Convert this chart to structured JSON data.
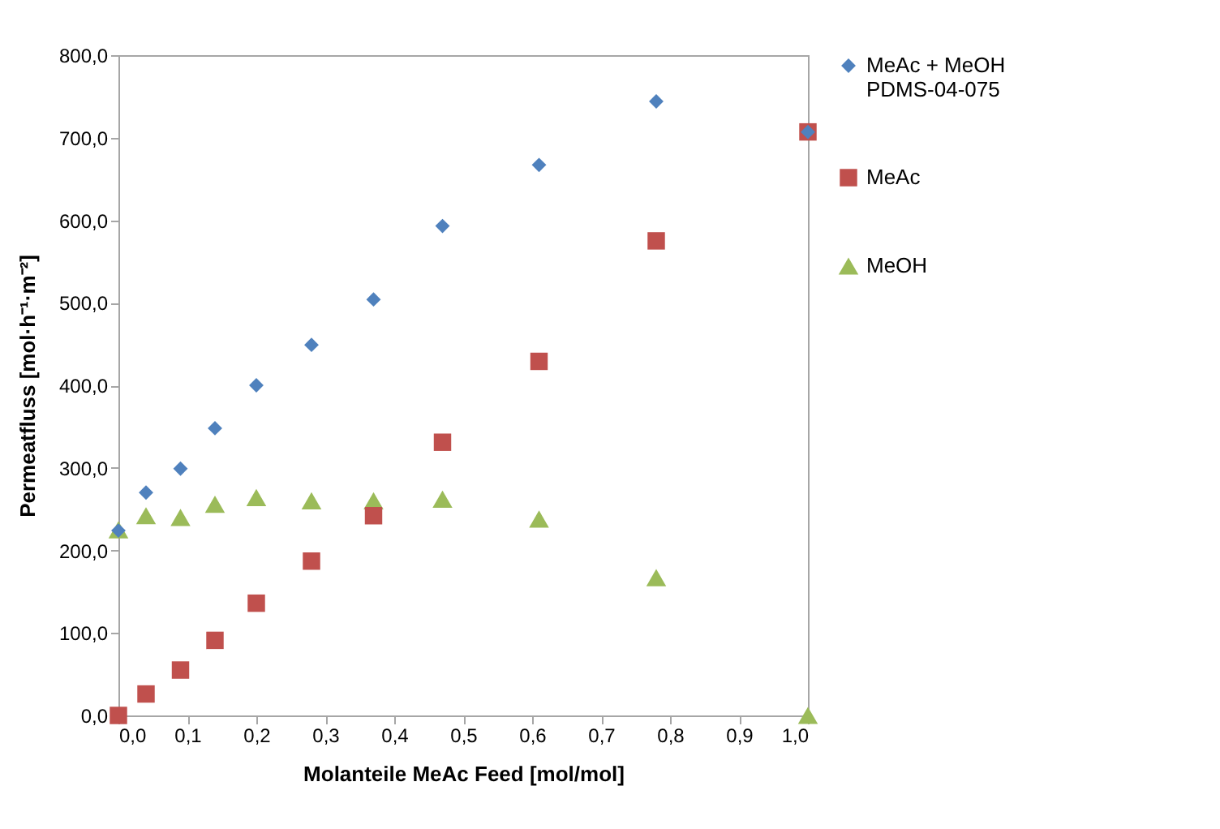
{
  "chart_data": {
    "type": "scatter",
    "xlabel": "Molanteile MeAc Feed [mol/mol]",
    "ylabel": "Permeatfluss [mol·h⁻¹·m⁻²]",
    "x": [
      0.0,
      0.04,
      0.09,
      0.14,
      0.2,
      0.28,
      0.37,
      0.47,
      0.61,
      0.78,
      1.0
    ],
    "series": [
      {
        "name": "MeAc + MeOH PDMS-04-075",
        "color": "#4f81bd",
        "marker": "diamond",
        "values": [
          224,
          270,
          299,
          348,
          400,
          449,
          504,
          593,
          667,
          744,
          707
        ]
      },
      {
        "name": "MeAc",
        "color": "#c0504d",
        "marker": "square",
        "values": [
          0,
          26,
          55,
          91,
          136,
          187,
          242,
          331,
          429,
          575,
          707
        ]
      },
      {
        "name": "MeOH",
        "color": "#9bbb59",
        "marker": "triangle",
        "values": [
          225,
          242,
          240,
          256,
          264,
          260,
          260,
          262,
          238,
          167,
          0
        ]
      }
    ],
    "xlim": [
      0,
      1.0
    ],
    "xticks": [
      {
        "value": 0,
        "label": "0,0"
      },
      {
        "value": 0.1,
        "label": "0,1"
      },
      {
        "value": 0.2,
        "label": "0,2"
      },
      {
        "value": 0.3,
        "label": "0,3"
      },
      {
        "value": 0.4,
        "label": "0,4"
      },
      {
        "value": 0.5,
        "label": "0,5"
      },
      {
        "value": 0.6,
        "label": "0,6"
      },
      {
        "value": 0.7,
        "label": "0,7"
      },
      {
        "value": 0.8,
        "label": "0,8"
      },
      {
        "value": 0.9,
        "label": "0,9"
      },
      {
        "value": 1.0,
        "label": "1,0"
      }
    ],
    "ylim": [
      0,
      800
    ],
    "yticks": [
      {
        "value": 0,
        "label": "0,0"
      },
      {
        "value": 100,
        "label": "100,0"
      },
      {
        "value": 200,
        "label": "200,0"
      },
      {
        "value": 300,
        "label": "300,0"
      },
      {
        "value": 400,
        "label": "400,0"
      },
      {
        "value": 500,
        "label": "500,0"
      },
      {
        "value": 600,
        "label": "600,0"
      },
      {
        "value": 700,
        "label": "700,0"
      },
      {
        "value": 800,
        "label": "800,0"
      }
    ],
    "grid": false,
    "legend": "right"
  }
}
